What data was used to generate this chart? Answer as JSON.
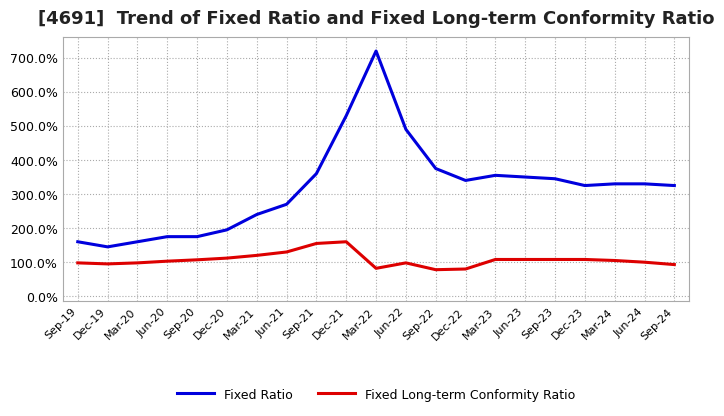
{
  "title": "[4691]  Trend of Fixed Ratio and Fixed Long-term Conformity Ratio",
  "title_fontsize": 13,
  "x_labels": [
    "Sep-19",
    "Dec-19",
    "Mar-20",
    "Jun-20",
    "Sep-20",
    "Dec-20",
    "Mar-21",
    "Jun-21",
    "Sep-21",
    "Dec-21",
    "Mar-22",
    "Jun-22",
    "Sep-22",
    "Dec-22",
    "Mar-23",
    "Jun-23",
    "Sep-23",
    "Dec-23",
    "Mar-24",
    "Jun-24",
    "Sep-24"
  ],
  "fixed_ratio": [
    160,
    145,
    160,
    175,
    175,
    195,
    240,
    270,
    360,
    530,
    720,
    490,
    375,
    340,
    355,
    350,
    345,
    325,
    330,
    330,
    325
  ],
  "fixed_lt_ratio": [
    98,
    95,
    98,
    103,
    107,
    112,
    120,
    130,
    155,
    160,
    82,
    98,
    78,
    80,
    108,
    108,
    108,
    108,
    105,
    100,
    93
  ],
  "fixed_ratio_color": "#0000dd",
  "fixed_lt_ratio_color": "#dd0000",
  "background_color": "#ffffff",
  "grid_color": "#aaaaaa",
  "ylim": [
    -15,
    760
  ],
  "yticks": [
    0,
    100,
    200,
    300,
    400,
    500,
    600,
    700
  ],
  "line_width": 2.2,
  "legend_labels": [
    "Fixed Ratio",
    "Fixed Long-term Conformity Ratio"
  ]
}
